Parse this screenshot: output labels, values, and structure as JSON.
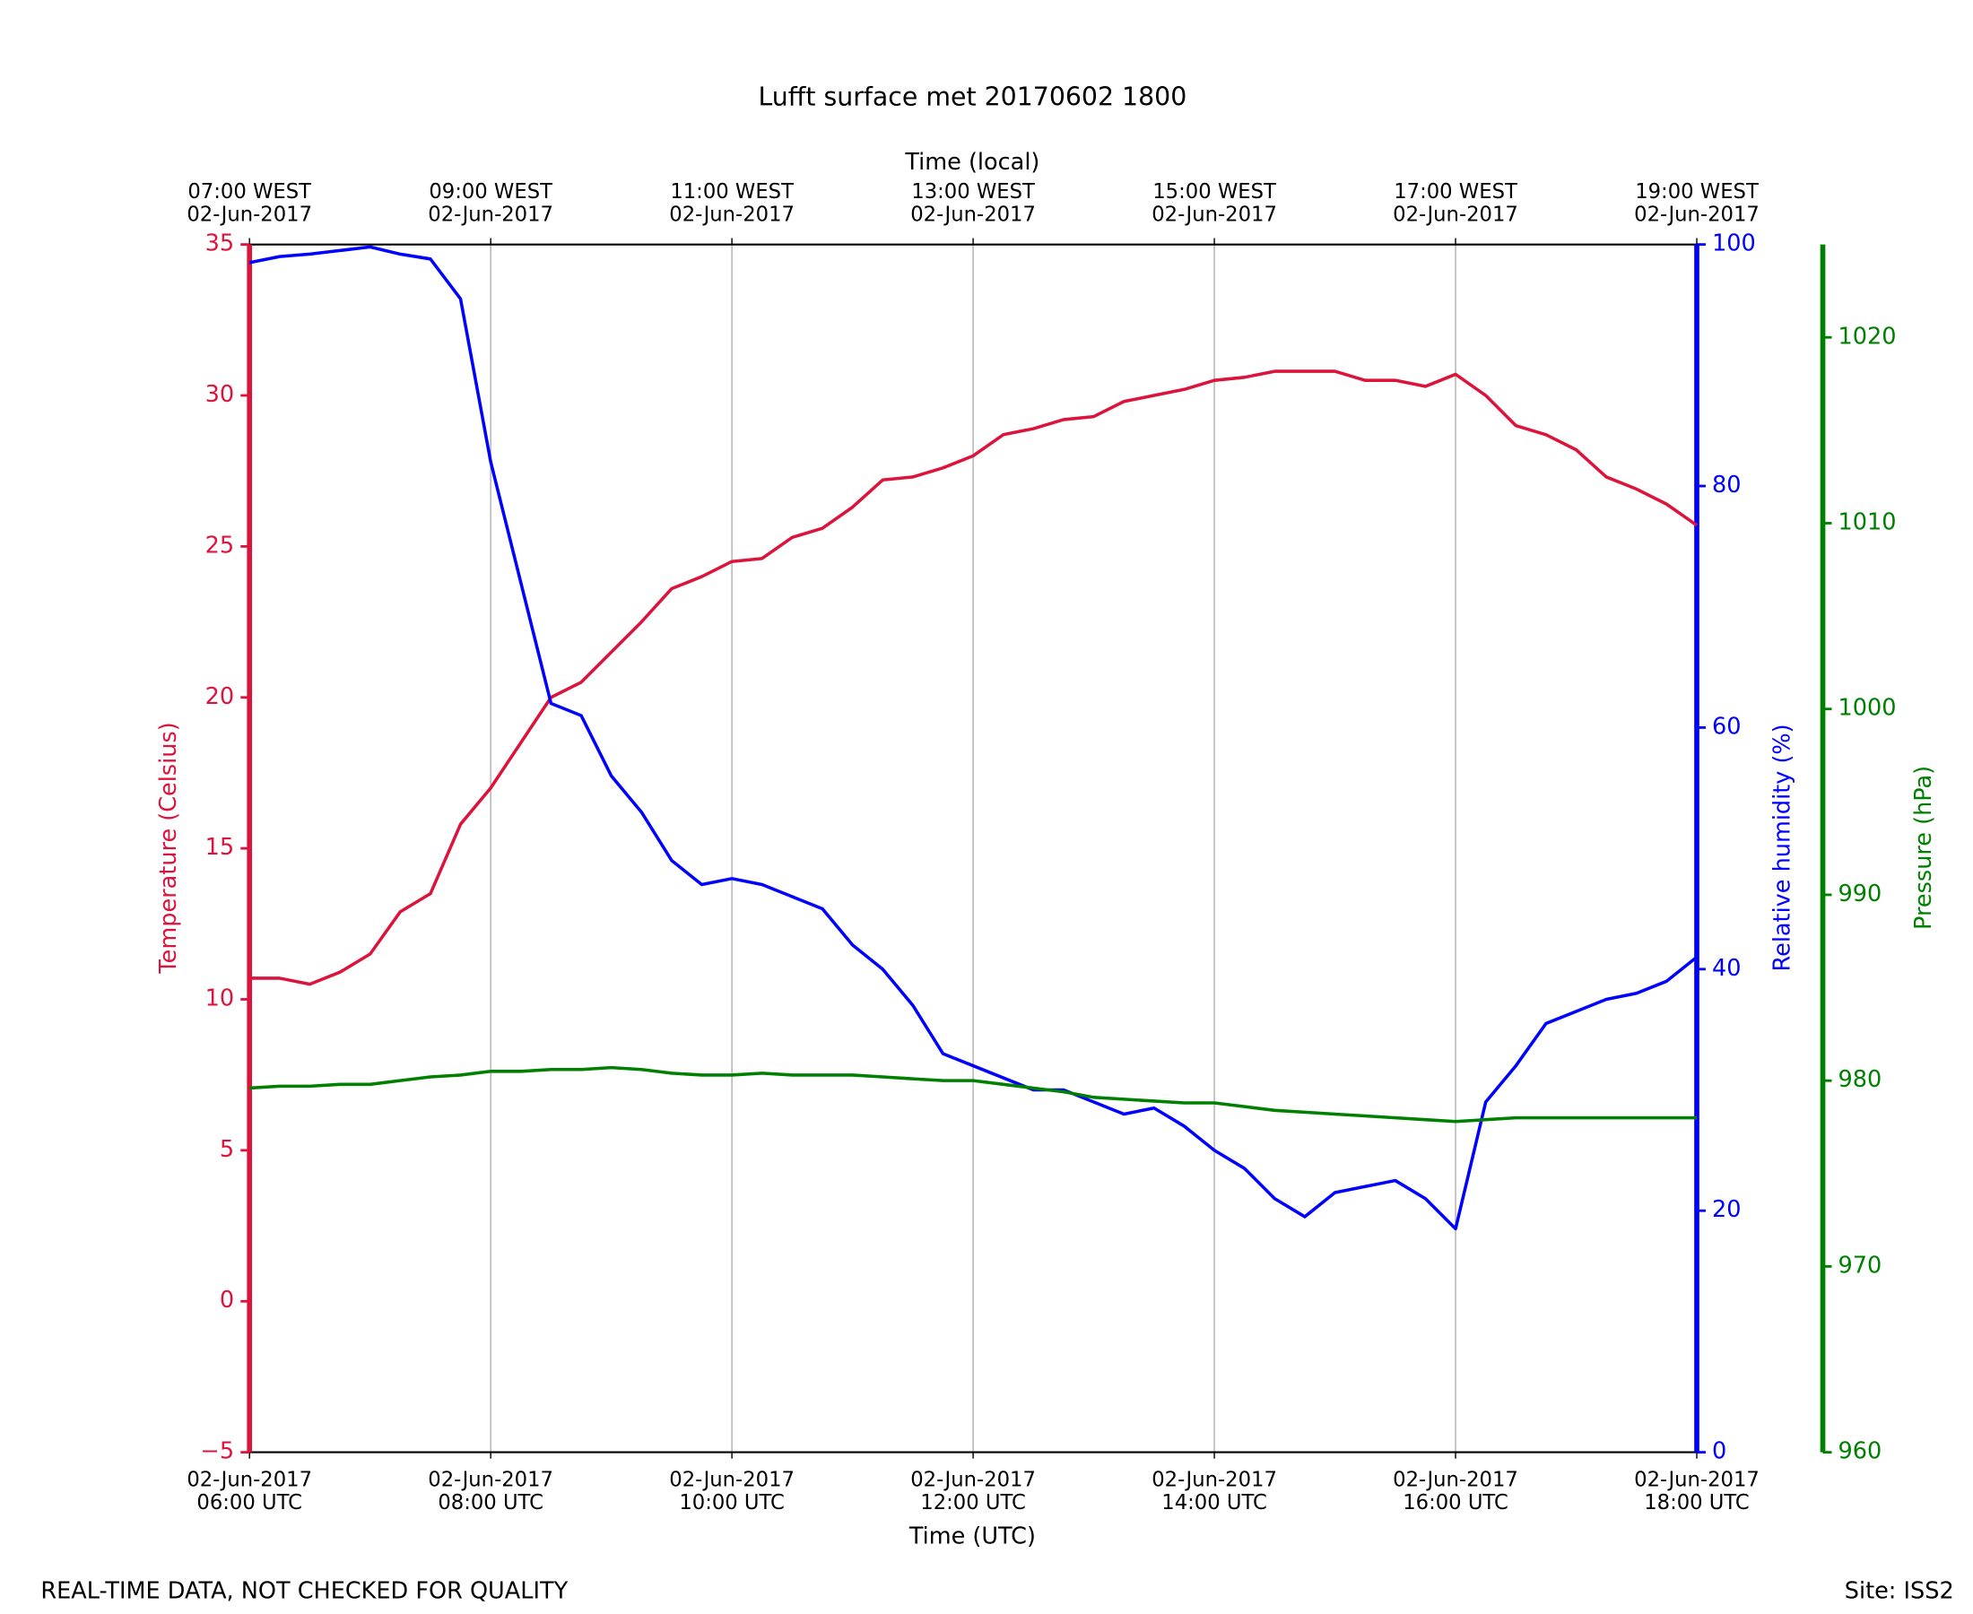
{
  "chart_data": {
    "type": "line",
    "title": "Lufft surface met 20170602 1800",
    "xlabel": "Time (UTC)",
    "x2label": "Time (local)",
    "ylabel": "Temperature (Celsius)",
    "y2label": "Relative humidity (%)",
    "y3label": "Pressure (hPa)",
    "footer_left": "REAL-TIME DATA, NOT CHECKED FOR QUALITY",
    "footer_right": "Site: ISS2",
    "x": [
      "2017-06-02 06:00",
      "2017-06-02 06:15",
      "2017-06-02 06:30",
      "2017-06-02 06:45",
      "2017-06-02 07:00",
      "2017-06-02 07:15",
      "2017-06-02 07:30",
      "2017-06-02 07:45",
      "2017-06-02 08:00",
      "2017-06-02 08:15",
      "2017-06-02 08:30",
      "2017-06-02 08:45",
      "2017-06-02 09:00",
      "2017-06-02 09:15",
      "2017-06-02 09:30",
      "2017-06-02 09:45",
      "2017-06-02 10:00",
      "2017-06-02 10:15",
      "2017-06-02 10:30",
      "2017-06-02 10:45",
      "2017-06-02 11:00",
      "2017-06-02 11:15",
      "2017-06-02 11:30",
      "2017-06-02 11:45",
      "2017-06-02 12:00",
      "2017-06-02 12:15",
      "2017-06-02 12:30",
      "2017-06-02 12:45",
      "2017-06-02 13:00",
      "2017-06-02 13:15",
      "2017-06-02 13:30",
      "2017-06-02 13:45",
      "2017-06-02 14:00",
      "2017-06-02 14:15",
      "2017-06-02 14:30",
      "2017-06-02 14:45",
      "2017-06-02 15:00",
      "2017-06-02 15:15",
      "2017-06-02 15:30",
      "2017-06-02 15:45",
      "2017-06-02 16:00",
      "2017-06-02 16:15",
      "2017-06-02 16:30",
      "2017-06-02 16:45",
      "2017-06-02 17:00",
      "2017-06-02 17:15",
      "2017-06-02 17:30",
      "2017-06-02 17:45",
      "2017-06-02 18:00"
    ],
    "xlim": [
      "2017-06-02 06:00",
      "2017-06-02 18:00"
    ],
    "xticks": [
      {
        "value": "2017-06-02 06:00",
        "label": [
          "02-Jun-2017",
          "06:00 UTC"
        ]
      },
      {
        "value": "2017-06-02 08:00",
        "label": [
          "02-Jun-2017",
          "08:00 UTC"
        ]
      },
      {
        "value": "2017-06-02 10:00",
        "label": [
          "02-Jun-2017",
          "10:00 UTC"
        ]
      },
      {
        "value": "2017-06-02 12:00",
        "label": [
          "02-Jun-2017",
          "12:00 UTC"
        ]
      },
      {
        "value": "2017-06-02 14:00",
        "label": [
          "02-Jun-2017",
          "14:00 UTC"
        ]
      },
      {
        "value": "2017-06-02 16:00",
        "label": [
          "02-Jun-2017",
          "16:00 UTC"
        ]
      },
      {
        "value": "2017-06-02 18:00",
        "label": [
          "02-Jun-2017",
          "18:00 UTC"
        ]
      }
    ],
    "x2ticks": [
      {
        "value": "2017-06-02 06:00",
        "label": [
          "07:00 WEST",
          "02-Jun-2017"
        ]
      },
      {
        "value": "2017-06-02 08:00",
        "label": [
          "09:00 WEST",
          "02-Jun-2017"
        ]
      },
      {
        "value": "2017-06-02 10:00",
        "label": [
          "11:00 WEST",
          "02-Jun-2017"
        ]
      },
      {
        "value": "2017-06-02 12:00",
        "label": [
          "13:00 WEST",
          "02-Jun-2017"
        ]
      },
      {
        "value": "2017-06-02 14:00",
        "label": [
          "15:00 WEST",
          "02-Jun-2017"
        ]
      },
      {
        "value": "2017-06-02 16:00",
        "label": [
          "17:00 WEST",
          "02-Jun-2017"
        ]
      },
      {
        "value": "2017-06-02 18:00",
        "label": [
          "19:00 WEST",
          "02-Jun-2017"
        ]
      }
    ],
    "grid": true,
    "ylim": [
      -5,
      35
    ],
    "yticks": [
      {
        "value": -5,
        "label": "−5"
      },
      0,
      5,
      10,
      15,
      20,
      25,
      30,
      35
    ],
    "y2lim": [
      0,
      100
    ],
    "y2ticks": [
      0,
      20,
      40,
      60,
      80,
      100
    ],
    "y3lim": [
      960,
      1025
    ],
    "y3ticks": [
      960,
      970,
      980,
      990,
      1000,
      1010,
      1020
    ],
    "series": [
      {
        "name": "Temperature",
        "color": "#dc143c",
        "axis": "y",
        "values": [
          10.7,
          10.7,
          10.5,
          10.9,
          11.5,
          12.9,
          13.5,
          15.8,
          17.0,
          18.5,
          20.0,
          20.5,
          21.5,
          22.5,
          23.6,
          24.0,
          24.5,
          24.6,
          25.3,
          25.6,
          26.3,
          27.2,
          27.3,
          27.6,
          28.0,
          28.7,
          28.9,
          29.2,
          29.3,
          29.8,
          30.0,
          30.2,
          30.5,
          30.6,
          30.8,
          30.8,
          30.8,
          30.5,
          30.5,
          30.3,
          30.7,
          30.0,
          29.0,
          28.7,
          28.2,
          27.3,
          26.9,
          26.4,
          25.7
        ]
      },
      {
        "name": "Relative humidity",
        "color": "#0000ff",
        "axis": "y2",
        "values": [
          98.5,
          99.0,
          99.2,
          99.5,
          99.8,
          99.2,
          98.8,
          95.5,
          82.0,
          72.0,
          62.0,
          61.0,
          56.0,
          53.0,
          49.0,
          47.0,
          47.5,
          47.0,
          46.0,
          45.0,
          42.0,
          40.0,
          37.0,
          33.0,
          32.0,
          31.0,
          30.0,
          30.0,
          29.0,
          28.0,
          28.5,
          27.0,
          25.0,
          23.5,
          21.0,
          19.5,
          21.5,
          22.0,
          22.5,
          21.0,
          18.5,
          29.0,
          32.0,
          35.5,
          36.5,
          37.5,
          38.0,
          39.0,
          41.0
        ]
      },
      {
        "name": "Pressure",
        "color": "#008000",
        "axis": "y3",
        "values": [
          979.6,
          979.7,
          979.7,
          979.8,
          979.8,
          980.0,
          980.2,
          980.3,
          980.5,
          980.5,
          980.6,
          980.6,
          980.7,
          980.6,
          980.4,
          980.3,
          980.3,
          980.4,
          980.3,
          980.3,
          980.3,
          980.2,
          980.1,
          980.0,
          980.0,
          979.8,
          979.6,
          979.4,
          979.1,
          979.0,
          978.9,
          978.8,
          978.8,
          978.6,
          978.4,
          978.3,
          978.2,
          978.1,
          978.0,
          977.9,
          977.8,
          977.9,
          978.0,
          978.0,
          978.0,
          978.0,
          978.0,
          978.0,
          978.0
        ]
      }
    ]
  }
}
